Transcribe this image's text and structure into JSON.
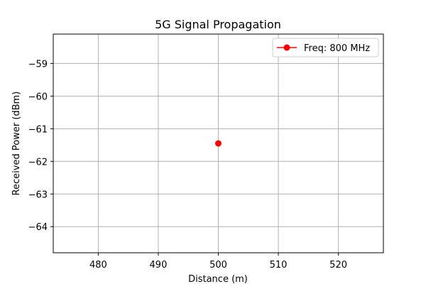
{
  "chart_data": {
    "type": "line",
    "title": "5G Signal Propagation",
    "xlabel": "Distance (m)",
    "ylabel": "Received Power (dBm)",
    "xlim": [
      472.5,
      527.5
    ],
    "ylim": [
      -64.8,
      -58.1
    ],
    "xticks": [
      480,
      490,
      500,
      510,
      520
    ],
    "xtick_labels": [
      "480",
      "490",
      "500",
      "510",
      "520"
    ],
    "yticks": [
      -64,
      -63,
      -62,
      -61,
      -60,
      -59
    ],
    "ytick_labels": [
      "−64",
      "−63",
      "−62",
      "−61",
      "−60",
      "−59"
    ],
    "grid": true,
    "legend_position": "top-right",
    "series": [
      {
        "name": "Freq: 800 MHz",
        "color": "#ff0000",
        "marker": "circle",
        "x": [
          500
        ],
        "y": [
          -61.45
        ]
      }
    ]
  }
}
